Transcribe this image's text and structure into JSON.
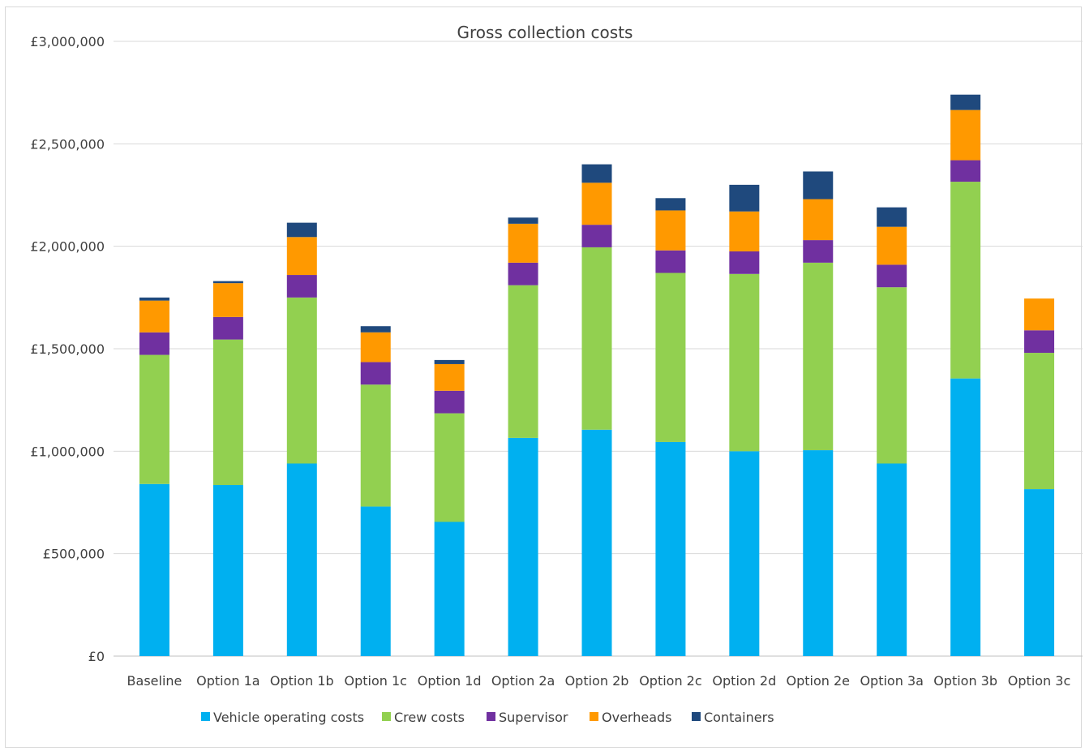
{
  "chart_data": {
    "type": "bar",
    "stacked": true,
    "title": "Gross collection costs",
    "xlabel": "",
    "ylabel": "",
    "ylim": [
      0,
      3000000
    ],
    "y_ticks": [
      0,
      500000,
      1000000,
      1500000,
      2000000,
      2500000,
      3000000
    ],
    "y_tick_labels": [
      "£0",
      "£500,000",
      "£1,000,000",
      "£1,500,000",
      "£2,000,000",
      "£2,500,000",
      "£3,000,000"
    ],
    "grid": true,
    "legend_position": "bottom",
    "categories": [
      "Baseline",
      "Option 1a",
      "Option 1b",
      "Option 1c",
      "Option 1d",
      "Option 2a",
      "Option 2b",
      "Option 2c",
      "Option 2d",
      "Option 2e",
      "Option 3a",
      "Option 3b",
      "Option 3c"
    ],
    "series": [
      {
        "name": "Vehicle operating costs",
        "color": "#00b0f0",
        "values": [
          840000,
          835000,
          940000,
          730000,
          655000,
          1065000,
          1105000,
          1045000,
          1000000,
          1005000,
          940000,
          1355000,
          815000
        ]
      },
      {
        "name": "Crew costs",
        "color": "#92d050",
        "values": [
          630000,
          710000,
          810000,
          595000,
          530000,
          745000,
          890000,
          825000,
          865000,
          915000,
          860000,
          960000,
          665000
        ]
      },
      {
        "name": "Supervisor",
        "color": "#7030a0",
        "values": [
          110000,
          110000,
          110000,
          110000,
          110000,
          110000,
          110000,
          110000,
          110000,
          110000,
          110000,
          105000,
          110000
        ]
      },
      {
        "name": "Overheads",
        "color": "#ff9900",
        "values": [
          155000,
          165000,
          185000,
          145000,
          130000,
          190000,
          205000,
          195000,
          195000,
          200000,
          185000,
          245000,
          155000
        ]
      },
      {
        "name": "Containers",
        "color": "#1f497d",
        "values": [
          15000,
          10000,
          70000,
          30000,
          20000,
          30000,
          90000,
          60000,
          130000,
          135000,
          95000,
          75000,
          0
        ]
      }
    ]
  }
}
